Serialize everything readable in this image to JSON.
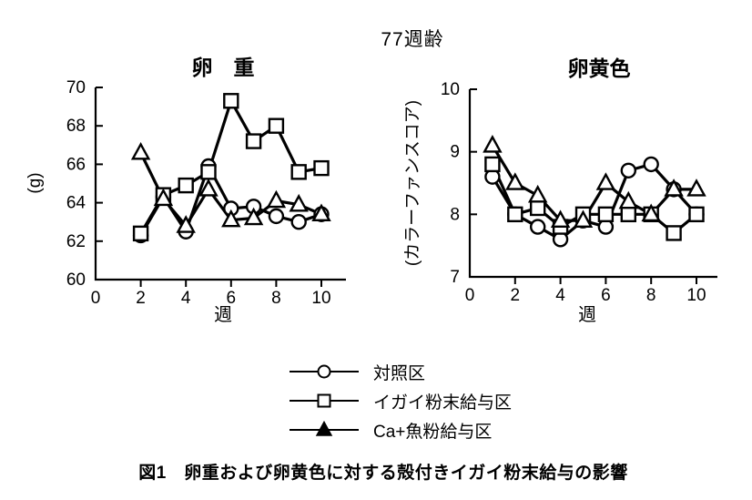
{
  "page": {
    "main_title": "77週齢",
    "caption": "図1　卵重および卵黄色に対する殻付きイガイ粉末給与の影響"
  },
  "legend": {
    "items": [
      {
        "label": "対照区",
        "marker": "circle"
      },
      {
        "label": "イガイ粉末給与区",
        "marker": "square"
      },
      {
        "label": "Ca+魚粉給与区",
        "marker": "triangle"
      }
    ]
  },
  "chart_data": [
    {
      "type": "line",
      "title": "卵　重",
      "ylabel": "(g)",
      "xlabel": "週",
      "ylim": [
        60,
        70
      ],
      "xlim": [
        0,
        11.1
      ],
      "yticks": [
        60,
        62,
        64,
        66,
        68,
        70
      ],
      "xticks": [
        0,
        2,
        4,
        6,
        8,
        10
      ],
      "grid": false,
      "x": [
        2,
        3,
        4,
        5,
        6,
        7,
        8,
        9,
        10
      ],
      "series": [
        {
          "name": "対照区",
          "marker": "circle",
          "values": [
            62.3,
            64.3,
            62.5,
            65.9,
            63.7,
            63.8,
            63.3,
            63.0,
            63.4
          ]
        },
        {
          "name": "イガイ粉末給与区",
          "marker": "square",
          "values": [
            62.4,
            64.4,
            64.9,
            65.6,
            69.3,
            67.2,
            68.0,
            65.6,
            65.8
          ]
        },
        {
          "name": "Ca+魚粉給与区",
          "marker": "triangle",
          "values": [
            66.6,
            64.2,
            62.8,
            64.7,
            63.1,
            63.2,
            64.1,
            63.9,
            63.4
          ]
        }
      ]
    },
    {
      "type": "line",
      "title": "卵黄色",
      "ylabel": "(カラーファンスコア)",
      "xlabel": "週",
      "ylim": [
        7,
        10
      ],
      "xlim": [
        0,
        10.9
      ],
      "yticks": [
        7,
        8,
        9,
        10
      ],
      "xticks": [
        0,
        2,
        4,
        6,
        8,
        10
      ],
      "grid": false,
      "x": [
        1,
        2,
        3,
        4,
        5,
        6,
        7,
        8,
        9,
        10
      ],
      "series": [
        {
          "name": "対照区",
          "marker": "circle",
          "values": [
            8.6,
            8.0,
            7.8,
            7.6,
            7.9,
            7.8,
            8.7,
            8.8,
            8.4,
            8.0
          ]
        },
        {
          "name": "イガイ粉末給与区",
          "marker": "square",
          "values": [
            8.8,
            8.0,
            8.1,
            7.8,
            8.0,
            8.0,
            8.0,
            8.0,
            7.7,
            8.0
          ]
        },
        {
          "name": "Ca+魚粉給与区",
          "marker": "triangle",
          "values": [
            9.1,
            8.5,
            8.3,
            7.9,
            7.9,
            8.5,
            8.2,
            8.0,
            8.4,
            8.4
          ]
        }
      ]
    }
  ]
}
